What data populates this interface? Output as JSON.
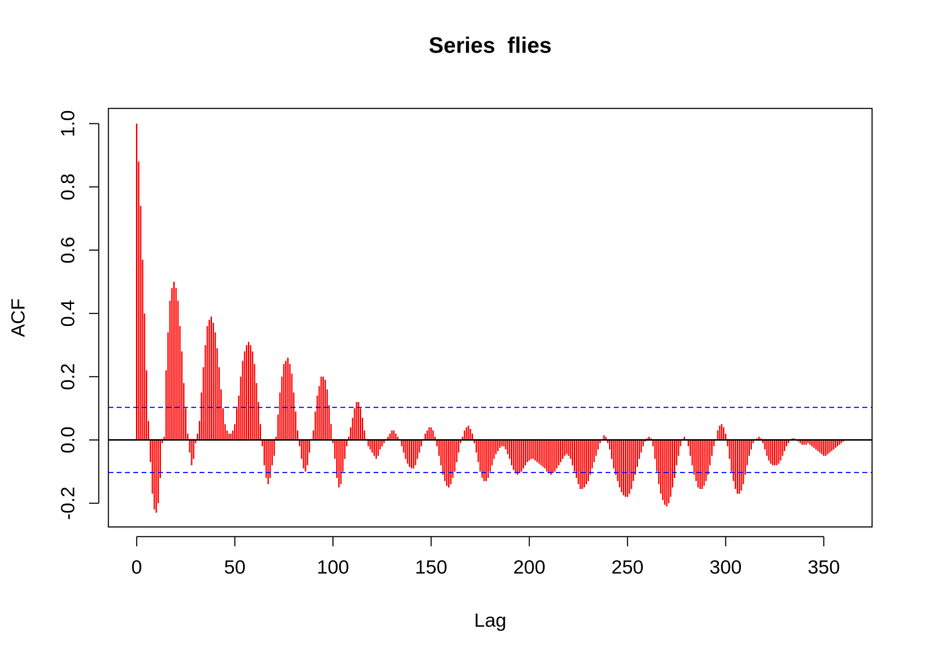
{
  "chart_data": {
    "type": "acf",
    "title": "Series  flies",
    "x_label": "Lag",
    "y_label": "ACF",
    "bar_color": "red",
    "ci_color": "blue",
    "ci_lines": [
      0.103,
      -0.103
    ],
    "xlim": [
      -14.4,
      374.6
    ],
    "ylim": [
      -0.275,
      1.048
    ],
    "xticks": [
      0,
      50,
      100,
      150,
      200,
      250,
      300,
      350
    ],
    "yticks": [
      -0.2,
      {
        "value": 0,
        "label": "0.0"
      },
      0.2,
      0.4,
      0.6,
      0.8,
      {
        "value": 1,
        "label": "1.0"
      }
    ],
    "x": [
      0,
      1,
      2,
      3,
      4,
      5,
      6,
      7,
      8,
      9,
      10,
      11,
      12,
      13,
      14,
      15,
      16,
      17,
      18,
      19,
      20,
      21,
      22,
      23,
      24,
      25,
      26,
      27,
      28,
      29,
      30,
      31,
      32,
      33,
      34,
      35,
      36,
      37,
      38,
      39,
      40,
      41,
      42,
      43,
      44,
      45,
      46,
      47,
      48,
      49,
      50,
      51,
      52,
      53,
      54,
      55,
      56,
      57,
      58,
      59,
      60,
      61,
      62,
      63,
      64,
      65,
      66,
      67,
      68,
      69,
      70,
      71,
      72,
      73,
      74,
      75,
      76,
      77,
      78,
      79,
      80,
      81,
      82,
      83,
      84,
      85,
      86,
      87,
      88,
      89,
      90,
      91,
      92,
      93,
      94,
      95,
      96,
      97,
      98,
      99,
      100,
      101,
      102,
      103,
      104,
      105,
      106,
      107,
      108,
      109,
      110,
      111,
      112,
      113,
      114,
      115,
      116,
      117,
      118,
      119,
      120,
      121,
      122,
      123,
      124,
      125,
      126,
      127,
      128,
      129,
      130,
      131,
      132,
      133,
      134,
      135,
      136,
      137,
      138,
      139,
      140,
      141,
      142,
      143,
      144,
      145,
      146,
      147,
      148,
      149,
      150,
      151,
      152,
      153,
      154,
      155,
      156,
      157,
      158,
      159,
      160,
      161,
      162,
      163,
      164,
      165,
      166,
      167,
      168,
      169,
      170,
      171,
      172,
      173,
      174,
      175,
      176,
      177,
      178,
      179,
      180,
      181,
      182,
      183,
      184,
      185,
      186,
      187,
      188,
      189,
      190,
      191,
      192,
      193,
      194,
      195,
      196,
      197,
      198,
      199,
      200,
      201,
      202,
      203,
      204,
      205,
      206,
      207,
      208,
      209,
      210,
      211,
      212,
      213,
      214,
      215,
      216,
      217,
      218,
      219,
      220,
      221,
      222,
      223,
      224,
      225,
      226,
      227,
      228,
      229,
      230,
      231,
      232,
      233,
      234,
      235,
      236,
      237,
      238,
      239,
      240,
      241,
      242,
      243,
      244,
      245,
      246,
      247,
      248,
      249,
      250,
      251,
      252,
      253,
      254,
      255,
      256,
      257,
      258,
      259,
      260,
      261,
      262,
      263,
      264,
      265,
      266,
      267,
      268,
      269,
      270,
      271,
      272,
      273,
      274,
      275,
      276,
      277,
      278,
      279,
      280,
      281,
      282,
      283,
      284,
      285,
      286,
      287,
      288,
      289,
      290,
      291,
      292,
      293,
      294,
      295,
      296,
      297,
      298,
      299,
      300,
      301,
      302,
      303,
      304,
      305,
      306,
      307,
      308,
      309,
      310,
      311,
      312,
      313,
      314,
      315,
      316,
      317,
      318,
      319,
      320,
      321,
      322,
      323,
      324,
      325,
      326,
      327,
      328,
      329,
      330,
      331,
      332,
      333,
      334,
      335,
      336,
      337,
      338,
      339,
      340,
      341,
      342,
      343,
      344,
      345,
      346,
      347,
      348,
      349,
      350,
      351,
      352,
      353,
      354,
      355,
      356,
      357,
      358,
      359,
      360
    ],
    "values": [
      1.0,
      0.88,
      0.74,
      0.57,
      0.4,
      0.22,
      0.06,
      -0.07,
      -0.17,
      -0.22,
      -0.23,
      -0.2,
      -0.12,
      -0.01,
      0.01,
      0.22,
      0.34,
      0.44,
      0.48,
      0.5,
      0.48,
      0.44,
      0.36,
      0.28,
      0.18,
      0.1,
      0.02,
      -0.04,
      -0.08,
      -0.06,
      -0.01,
      0.02,
      0.06,
      0.15,
      0.23,
      0.3,
      0.36,
      0.38,
      0.39,
      0.37,
      0.34,
      0.29,
      0.23,
      0.16,
      0.1,
      0.05,
      0.03,
      0.02,
      0.02,
      0.03,
      0.05,
      0.1,
      0.14,
      0.2,
      0.25,
      0.28,
      0.3,
      0.31,
      0.3,
      0.28,
      0.24,
      0.18,
      0.12,
      0.05,
      -0.02,
      -0.08,
      -0.12,
      -0.14,
      -0.12,
      -0.08,
      -0.05,
      0.01,
      0.08,
      0.15,
      0.2,
      0.24,
      0.25,
      0.26,
      0.24,
      0.21,
      0.15,
      0.09,
      0.03,
      -0.02,
      -0.06,
      -0.09,
      -0.1,
      -0.08,
      -0.04,
      0.0,
      0.03,
      0.09,
      0.14,
      0.17,
      0.2,
      0.2,
      0.19,
      0.16,
      0.11,
      0.05,
      -0.01,
      -0.06,
      -0.12,
      -0.15,
      -0.14,
      -0.1,
      -0.06,
      -0.02,
      0.01,
      0.04,
      0.07,
      0.1,
      0.12,
      0.12,
      0.1,
      0.07,
      0.03,
      0.0,
      -0.02,
      -0.03,
      -0.04,
      -0.05,
      -0.06,
      -0.05,
      -0.03,
      -0.02,
      -0.01,
      0.0,
      0.01,
      0.02,
      0.03,
      0.03,
      0.02,
      0.01,
      0.0,
      -0.02,
      -0.04,
      -0.06,
      -0.075,
      -0.085,
      -0.09,
      -0.09,
      -0.08,
      -0.06,
      -0.04,
      -0.02,
      0.0,
      0.02,
      0.03,
      0.04,
      0.04,
      0.03,
      0.01,
      -0.02,
      -0.05,
      -0.08,
      -0.11,
      -0.13,
      -0.145,
      -0.15,
      -0.14,
      -0.12,
      -0.1,
      -0.07,
      -0.04,
      -0.01,
      0.01,
      0.03,
      0.04,
      0.045,
      0.035,
      0.02,
      -0.01,
      -0.04,
      -0.07,
      -0.1,
      -0.12,
      -0.13,
      -0.13,
      -0.12,
      -0.1,
      -0.08,
      -0.06,
      -0.045,
      -0.035,
      -0.025,
      -0.02,
      -0.02,
      -0.03,
      -0.045,
      -0.06,
      -0.08,
      -0.095,
      -0.105,
      -0.11,
      -0.105,
      -0.1,
      -0.09,
      -0.08,
      -0.07,
      -0.065,
      -0.06,
      -0.06,
      -0.065,
      -0.07,
      -0.075,
      -0.08,
      -0.085,
      -0.09,
      -0.1,
      -0.105,
      -0.11,
      -0.105,
      -0.1,
      -0.09,
      -0.08,
      -0.07,
      -0.06,
      -0.05,
      -0.045,
      -0.05,
      -0.06,
      -0.08,
      -0.1,
      -0.12,
      -0.14,
      -0.155,
      -0.155,
      -0.15,
      -0.14,
      -0.13,
      -0.11,
      -0.09,
      -0.07,
      -0.05,
      -0.03,
      -0.01,
      0.0,
      0.015,
      0.01,
      -0.01,
      -0.03,
      -0.06,
      -0.09,
      -0.11,
      -0.13,
      -0.15,
      -0.165,
      -0.175,
      -0.18,
      -0.18,
      -0.17,
      -0.155,
      -0.13,
      -0.11,
      -0.085,
      -0.06,
      -0.04,
      -0.02,
      -0.005,
      0.005,
      0.01,
      0.005,
      -0.02,
      -0.06,
      -0.1,
      -0.14,
      -0.17,
      -0.19,
      -0.205,
      -0.21,
      -0.2,
      -0.18,
      -0.15,
      -0.12,
      -0.08,
      -0.05,
      -0.02,
      0.0,
      0.01,
      0.0,
      -0.02,
      -0.05,
      -0.08,
      -0.11,
      -0.13,
      -0.15,
      -0.155,
      -0.155,
      -0.145,
      -0.13,
      -0.11,
      -0.08,
      -0.05,
      -0.02,
      0.0,
      0.03,
      0.045,
      0.05,
      0.04,
      0.02,
      -0.02,
      -0.06,
      -0.1,
      -0.13,
      -0.155,
      -0.17,
      -0.17,
      -0.16,
      -0.14,
      -0.11,
      -0.08,
      -0.05,
      -0.03,
      -0.01,
      0.0,
      0.005,
      0.01,
      0.005,
      -0.01,
      -0.03,
      -0.05,
      -0.065,
      -0.075,
      -0.08,
      -0.08,
      -0.08,
      -0.075,
      -0.065,
      -0.05,
      -0.035,
      -0.02,
      -0.01,
      0.0,
      0.005,
      0.005,
      0.0,
      -0.005,
      -0.01,
      -0.015,
      -0.015,
      -0.015,
      -0.01,
      -0.015,
      -0.02,
      -0.025,
      -0.03,
      -0.035,
      -0.04,
      -0.045,
      -0.05,
      -0.05,
      -0.045,
      -0.04,
      -0.035,
      -0.03,
      -0.025,
      -0.02,
      -0.015,
      -0.01,
      -0.005
    ]
  }
}
